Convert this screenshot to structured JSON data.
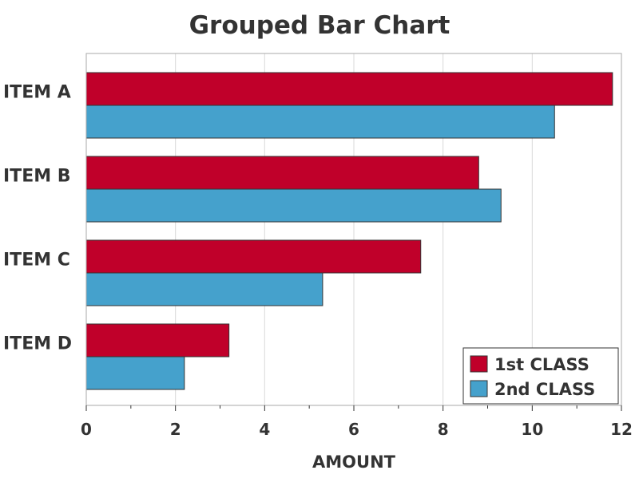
{
  "chart_data": {
    "type": "bar",
    "orientation": "horizontal",
    "title": "Grouped Bar Chart",
    "xlabel": "AMOUNT",
    "ylabel": "",
    "categories": [
      "ITEM A",
      "ITEM B",
      "ITEM C",
      "ITEM D"
    ],
    "series": [
      {
        "name": "1st CLASS",
        "color": "#c0002a",
        "values": [
          11.8,
          8.8,
          7.5,
          3.2
        ]
      },
      {
        "name": "2nd CLASS",
        "color": "#45a1cc",
        "values": [
          10.5,
          9.3,
          5.3,
          2.2
        ]
      }
    ],
    "xlim": [
      0,
      12
    ],
    "xticks": [
      "0",
      "2",
      "4",
      "6",
      "8",
      "10",
      "12"
    ],
    "xtick_values": [
      0,
      2,
      4,
      6,
      8,
      10,
      12
    ],
    "grid": "vertical",
    "legend_position": "bottom-right"
  }
}
